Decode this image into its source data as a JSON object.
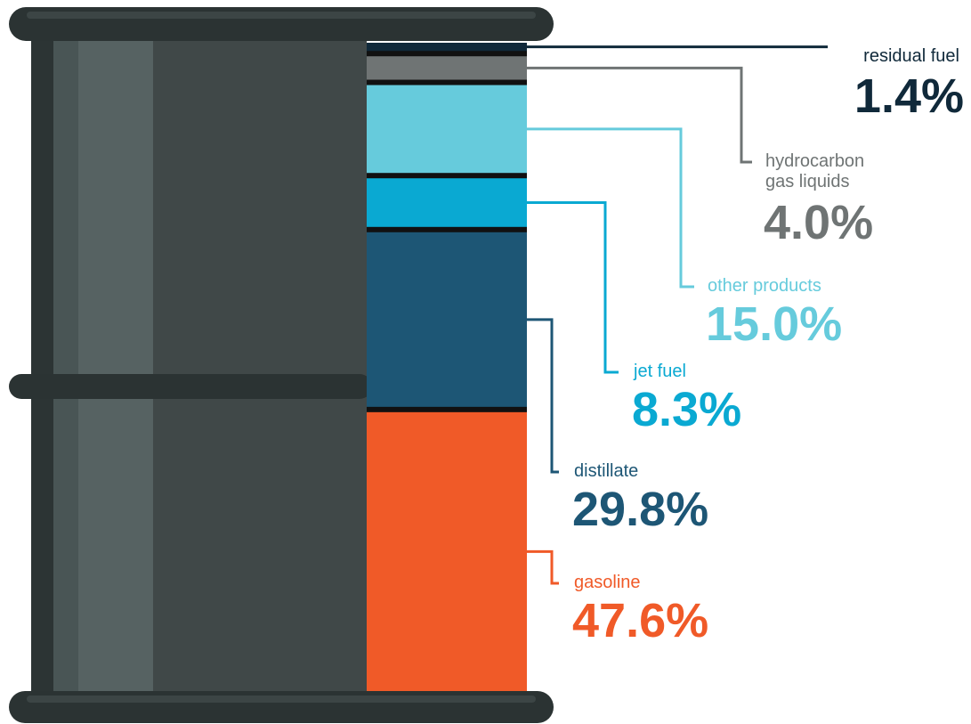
{
  "chart_data": {
    "type": "stacked-bar",
    "series": [
      {
        "name": "gasoline",
        "color": "#f05a28",
        "values": [
          47.6
        ],
        "value_labels": [
          "47.6%"
        ]
      },
      {
        "name": "distillate",
        "color": "#1d5675",
        "values": [
          29.8
        ],
        "value_labels": [
          "29.8%"
        ]
      },
      {
        "name": "jet fuel",
        "color": "#0aa9d2",
        "values": [
          8.3
        ],
        "value_labels": [
          "8.3%"
        ]
      },
      {
        "name": "other products",
        "color": "#66cbdc",
        "values": [
          15.0
        ],
        "value_labels": [
          "15.0%"
        ]
      },
      {
        "name": "hydrocarbon gas liquids",
        "color": "#6f7474",
        "values": [
          4.0
        ],
        "value_labels": [
          "4.0%"
        ]
      },
      {
        "name": "residual fuel",
        "color": "#10293a",
        "values": [
          1.4
        ],
        "value_labels": [
          "1.4%"
        ]
      }
    ]
  }
}
